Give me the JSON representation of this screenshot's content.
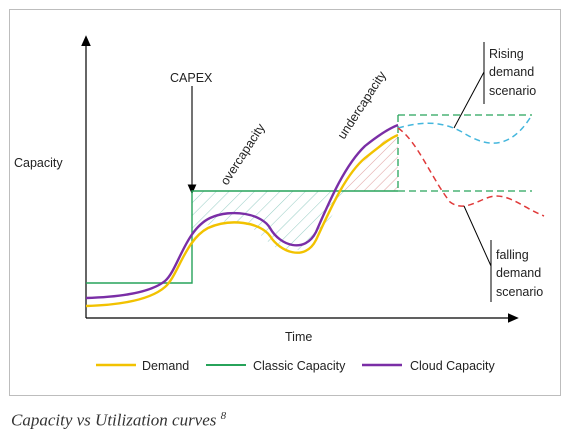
{
  "diagram": {
    "ylabel": "Capacity",
    "xlabel": "Time",
    "capex_label": "CAPEX",
    "overcapacity_label": "overcapacity",
    "undercapacity_label": "undercapacity",
    "rising": [
      "Rising",
      "demand",
      "scenario"
    ],
    "falling": [
      "falling",
      "demand",
      "scenario"
    ]
  },
  "legend": [
    {
      "label": "Demand",
      "color": "#f2c200"
    },
    {
      "label": "Classic Capacity",
      "color": "#27a35a"
    },
    {
      "label": "Cloud Capacity",
      "color": "#7a2ea6"
    }
  ],
  "colors": {
    "rising_scenario": "#45b7dd",
    "falling_scenario": "#e03a3a",
    "overcap_hatch": "#9ccfc8",
    "undercap_hatch": "#e0a3a3"
  },
  "caption": {
    "text": "Capacity vs Utilization curves",
    "ref": "8"
  }
}
